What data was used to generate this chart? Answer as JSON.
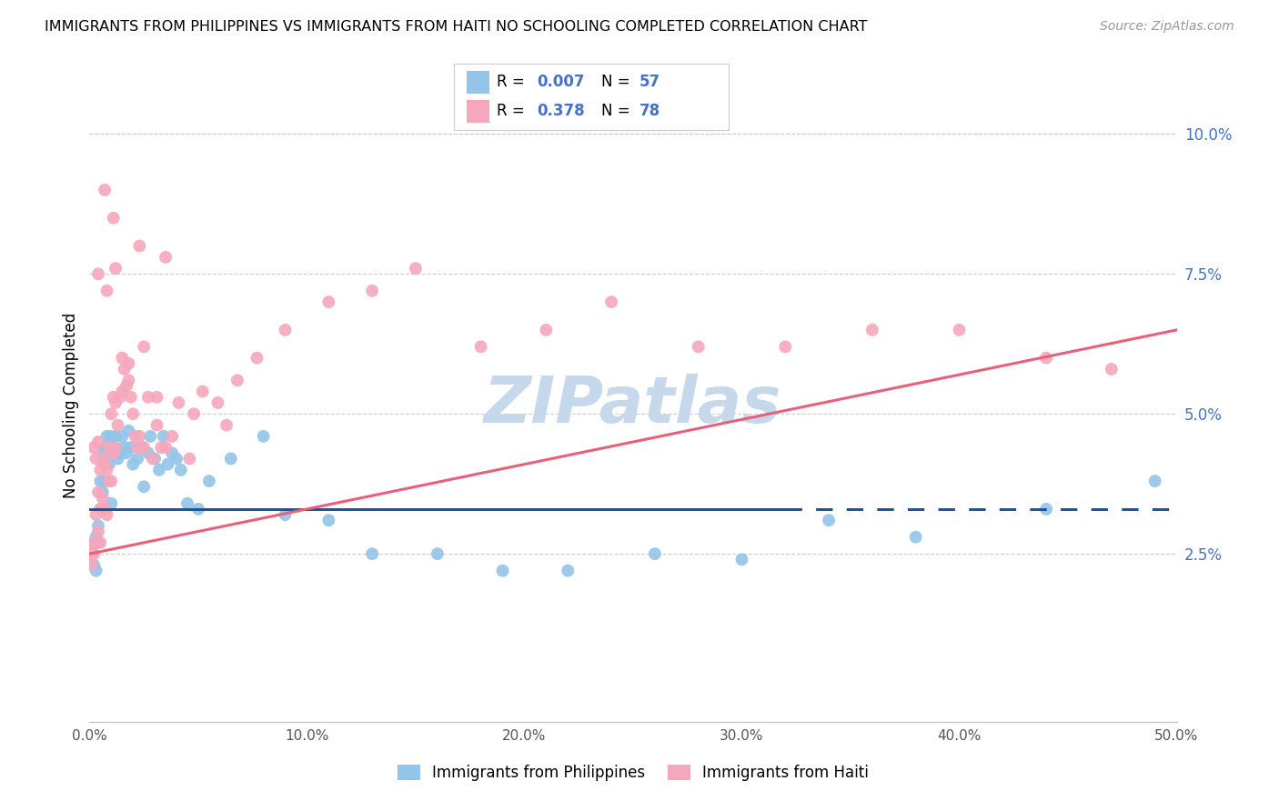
{
  "title": "IMMIGRANTS FROM PHILIPPINES VS IMMIGRANTS FROM HAITI NO SCHOOLING COMPLETED CORRELATION CHART",
  "source": "Source: ZipAtlas.com",
  "ylabel": "No Schooling Completed",
  "right_yticks": [
    0.025,
    0.05,
    0.075,
    0.1
  ],
  "right_yticklabels": [
    "2.5%",
    "5.0%",
    "7.5%",
    "10.0%"
  ],
  "xlim": [
    0.0,
    0.5
  ],
  "ylim": [
    -0.005,
    0.108
  ],
  "philippines_color": "#92C5E8",
  "haiti_color": "#F5A8BC",
  "philippines_line_color": "#1A56A0",
  "haiti_line_color": "#E8607A",
  "R_philippines": 0.007,
  "N_philippines": 57,
  "R_haiti": 0.378,
  "N_haiti": 78,
  "phil_line_y0": 0.033,
  "phil_line_y1": 0.033,
  "phil_line_solid_x1": 0.32,
  "haiti_line_y0": 0.025,
  "haiti_line_y1": 0.065,
  "philippines_x": [
    0.001,
    0.002,
    0.002,
    0.003,
    0.003,
    0.004,
    0.004,
    0.005,
    0.005,
    0.006,
    0.006,
    0.007,
    0.007,
    0.008,
    0.008,
    0.009,
    0.01,
    0.01,
    0.011,
    0.012,
    0.013,
    0.014,
    0.015,
    0.016,
    0.017,
    0.018,
    0.019,
    0.02,
    0.022,
    0.024,
    0.025,
    0.027,
    0.028,
    0.03,
    0.032,
    0.034,
    0.036,
    0.038,
    0.04,
    0.042,
    0.045,
    0.05,
    0.055,
    0.065,
    0.08,
    0.09,
    0.11,
    0.13,
    0.16,
    0.19,
    0.22,
    0.26,
    0.3,
    0.34,
    0.38,
    0.44,
    0.49
  ],
  "philippines_y": [
    0.025,
    0.023,
    0.027,
    0.028,
    0.022,
    0.03,
    0.027,
    0.033,
    0.038,
    0.043,
    0.036,
    0.044,
    0.038,
    0.046,
    0.043,
    0.041,
    0.034,
    0.046,
    0.044,
    0.046,
    0.042,
    0.043,
    0.046,
    0.044,
    0.043,
    0.047,
    0.044,
    0.041,
    0.042,
    0.044,
    0.037,
    0.043,
    0.046,
    0.042,
    0.04,
    0.046,
    0.041,
    0.043,
    0.042,
    0.04,
    0.034,
    0.033,
    0.038,
    0.042,
    0.046,
    0.032,
    0.031,
    0.025,
    0.025,
    0.022,
    0.022,
    0.025,
    0.024,
    0.031,
    0.028,
    0.033,
    0.038
  ],
  "haiti_x": [
    0.001,
    0.001,
    0.002,
    0.002,
    0.002,
    0.003,
    0.003,
    0.003,
    0.004,
    0.004,
    0.004,
    0.005,
    0.005,
    0.005,
    0.006,
    0.006,
    0.007,
    0.007,
    0.008,
    0.008,
    0.009,
    0.009,
    0.01,
    0.01,
    0.011,
    0.011,
    0.012,
    0.012,
    0.013,
    0.014,
    0.015,
    0.016,
    0.017,
    0.018,
    0.019,
    0.02,
    0.021,
    0.022,
    0.023,
    0.025,
    0.027,
    0.029,
    0.031,
    0.033,
    0.035,
    0.038,
    0.041,
    0.046,
    0.052,
    0.059,
    0.068,
    0.077,
    0.09,
    0.11,
    0.13,
    0.15,
    0.18,
    0.21,
    0.24,
    0.28,
    0.32,
    0.36,
    0.4,
    0.44,
    0.47,
    0.011,
    0.025,
    0.035,
    0.048,
    0.063,
    0.004,
    0.007,
    0.015,
    0.023,
    0.031,
    0.012,
    0.018,
    0.008
  ],
  "haiti_y": [
    0.023,
    0.025,
    0.025,
    0.027,
    0.044,
    0.027,
    0.032,
    0.042,
    0.029,
    0.036,
    0.045,
    0.027,
    0.033,
    0.04,
    0.035,
    0.042,
    0.033,
    0.041,
    0.032,
    0.04,
    0.038,
    0.044,
    0.038,
    0.05,
    0.043,
    0.053,
    0.044,
    0.052,
    0.048,
    0.053,
    0.054,
    0.058,
    0.055,
    0.059,
    0.053,
    0.05,
    0.046,
    0.044,
    0.046,
    0.044,
    0.053,
    0.042,
    0.053,
    0.044,
    0.044,
    0.046,
    0.052,
    0.042,
    0.054,
    0.052,
    0.056,
    0.06,
    0.065,
    0.07,
    0.072,
    0.076,
    0.062,
    0.065,
    0.07,
    0.062,
    0.062,
    0.065,
    0.065,
    0.06,
    0.058,
    0.085,
    0.062,
    0.078,
    0.05,
    0.048,
    0.075,
    0.09,
    0.06,
    0.08,
    0.048,
    0.076,
    0.056,
    0.072
  ],
  "marker_size": 100,
  "background_color": "#FFFFFF",
  "grid_color": "#CCCCCC",
  "watermark_text": "ZIPatlas",
  "watermark_color": "#C5D8EC",
  "legend_border_color": "#CCCCCC"
}
